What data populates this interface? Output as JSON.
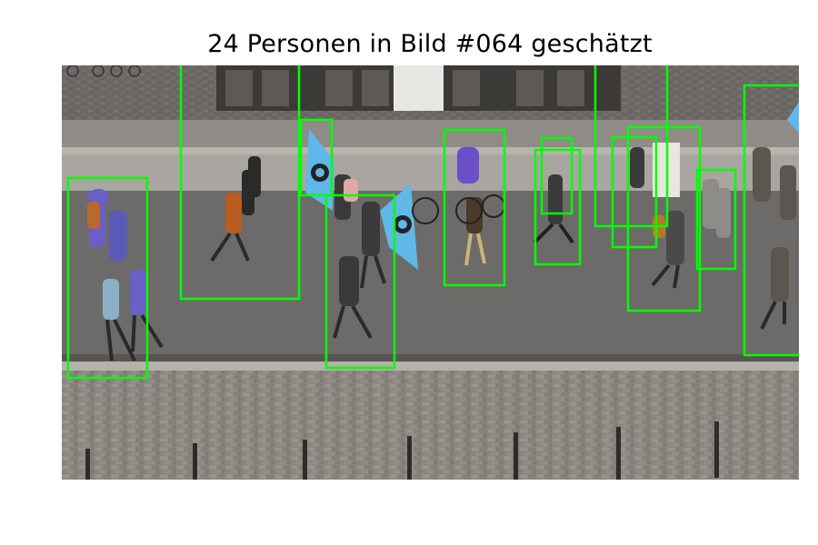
{
  "figure": {
    "title": "24 Personen in Bild #064 geschätzt",
    "estimated_count": 24,
    "frame_number": "#064",
    "box_color": "#00ff00",
    "box_count_shown": 14
  }
}
